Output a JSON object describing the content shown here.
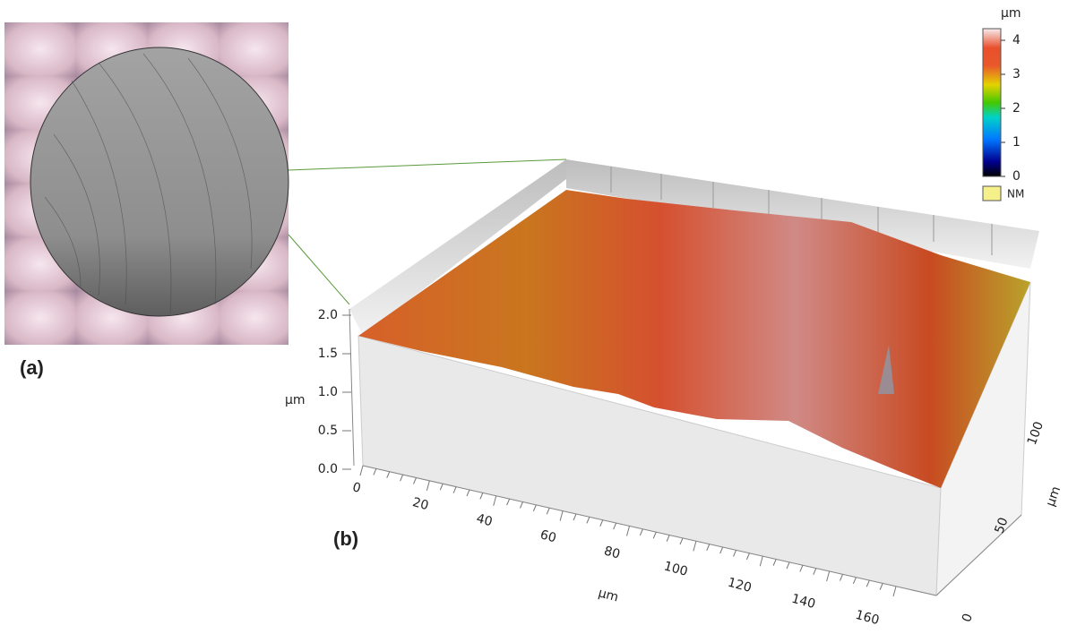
{
  "panel_a": {
    "label": "(a)"
  },
  "panel_b": {
    "label": "(b)",
    "colorbar": {
      "unit": "µm",
      "ticks": [
        "4",
        "3",
        "2",
        "1",
        "0"
      ],
      "nm_label": "NM"
    },
    "z_axis": {
      "unit": "µm",
      "ticks": [
        "2.0",
        "1.5",
        "1.0",
        "0.5",
        "0.0"
      ]
    },
    "x_axis": {
      "unit": "µm",
      "ticks": [
        "0",
        "20",
        "40",
        "60",
        "80",
        "100",
        "120",
        "140",
        "160"
      ]
    },
    "y_axis": {
      "unit": "µm",
      "ticks": [
        "0",
        "50",
        "100"
      ]
    }
  }
}
